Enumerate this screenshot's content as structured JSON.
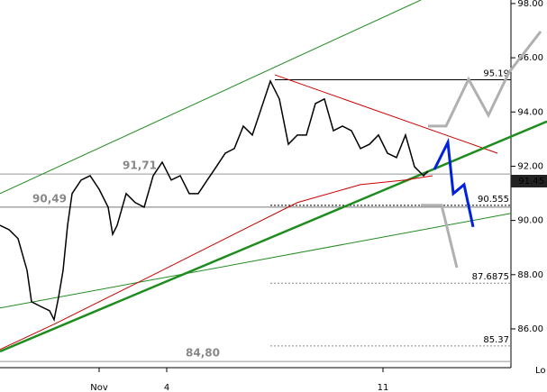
{
  "chart_data": {
    "type": "line",
    "xlim": [
      0,
      121.4
    ],
    "ylim": [
      84.57,
      98.13
    ],
    "plot_right": 113.4,
    "xticks": [
      {
        "value": 22,
        "label": "Nov"
      },
      {
        "value": 37,
        "label": "4"
      },
      {
        "value": 85,
        "label": "11"
      }
    ],
    "yticks": [
      {
        "value": 86,
        "label": "86.00"
      },
      {
        "value": 88,
        "label": "88.00"
      },
      {
        "value": 90,
        "label": "90.00"
      },
      {
        "value": 92,
        "label": "92.00"
      },
      {
        "value": 94,
        "label": "94.00"
      },
      {
        "value": 96,
        "label": "96.00"
      },
      {
        "value": 98,
        "label": "98.00"
      }
    ],
    "series": [
      {
        "color": "#000000",
        "x": [
          0,
          2,
          4,
          6,
          7,
          9,
          11,
          12,
          13,
          14,
          15,
          16,
          18,
          20,
          22,
          24,
          25,
          26,
          28,
          30,
          32,
          34,
          36,
          38,
          40,
          42,
          44,
          46,
          48,
          50,
          52,
          54,
          56,
          58,
          60,
          62,
          64,
          66,
          68,
          70,
          72,
          74,
          76,
          78,
          80,
          82,
          84,
          86,
          88,
          90,
          92,
          94,
          95
        ],
        "values": [
          89.82,
          89.66,
          89.33,
          88.16,
          87.0,
          86.83,
          86.67,
          86.34,
          87.17,
          88.16,
          89.82,
          90.99,
          91.49,
          91.65,
          91.15,
          90.49,
          89.49,
          89.82,
          90.99,
          90.66,
          90.49,
          91.65,
          92.15,
          91.49,
          91.65,
          90.99,
          90.99,
          91.49,
          91.98,
          92.48,
          92.65,
          93.48,
          93.15,
          94.14,
          95.14,
          94.48,
          92.81,
          93.15,
          93.15,
          94.31,
          94.48,
          93.31,
          93.48,
          93.31,
          92.65,
          92.81,
          93.15,
          92.48,
          92.32,
          93.15,
          91.98,
          91.65,
          91.81
        ]
      }
    ],
    "moving_average": {
      "color": "#cc0000",
      "x": [
        0,
        12,
        30,
        50,
        66,
        80,
        90,
        96
      ],
      "y": [
        85.24,
        86.17,
        87.66,
        89.33,
        90.66,
        91.32,
        91.49,
        91.65
      ]
    },
    "trendlines": [
      {
        "color": "#228b22",
        "x": [
          0,
          93.4
        ],
        "y": [
          90.99,
          98.13
        ]
      },
      {
        "color": "#228b22",
        "x": [
          0,
          113.4
        ],
        "y": [
          86.77,
          90.26
        ]
      },
      {
        "color": "#cc0000",
        "x": [
          61,
          110.4
        ],
        "y": [
          95.37,
          92.48
        ]
      }
    ],
    "main_trendline": {
      "color": "#1e8c1e",
      "x": [
        0,
        121.4
      ],
      "y": [
        85.17,
        93.65
      ]
    },
    "projections": [
      {
        "color": "#0022dd",
        "x": [
          96.4,
          99.4,
          100.6,
          103,
          105
        ],
        "y": [
          91.88,
          92.88,
          90.99,
          91.32,
          89.76
        ]
      },
      {
        "color": "#b0b0b0",
        "x": [
          95,
          99,
          104,
          108.4,
          113,
          120
        ],
        "y": [
          93.48,
          93.48,
          95.21,
          93.88,
          95.47,
          96.97
        ]
      },
      {
        "color": "#b0b0b0",
        "x": [
          93.4,
          98,
          101.4
        ],
        "y": [
          90.56,
          90.56,
          88.26
        ]
      }
    ],
    "levels": [
      {
        "value": 95.19,
        "label": "95.19",
        "color": "#000000",
        "dashed": false,
        "x_start": 61
      },
      {
        "value": 91.71,
        "label": "91,71",
        "color": "#999999",
        "dashed": false,
        "x_start": 0,
        "label_x": 31
      },
      {
        "value": 90.49,
        "label": "90,49",
        "color": "#777777",
        "dashed": false,
        "x_start": 0,
        "label_x": 11
      },
      {
        "value": 90.555,
        "label": "90.555",
        "color": "#000000",
        "dashed": true,
        "x_start": 60
      },
      {
        "value": 87.6875,
        "label": "87.6875",
        "color": "#888888",
        "dashed": true,
        "x_start": 60
      },
      {
        "value": 85.37,
        "label": "85.37",
        "color": "#888888",
        "dashed": true,
        "x_start": 60
      },
      {
        "value": 84.8,
        "label": "84,80",
        "color": "#999999",
        "dashed": false,
        "x_start": 0,
        "label_x": 45
      }
    ],
    "last": {
      "value": 91.45,
      "label": "91.45"
    },
    "corner_text": "Lo"
  }
}
